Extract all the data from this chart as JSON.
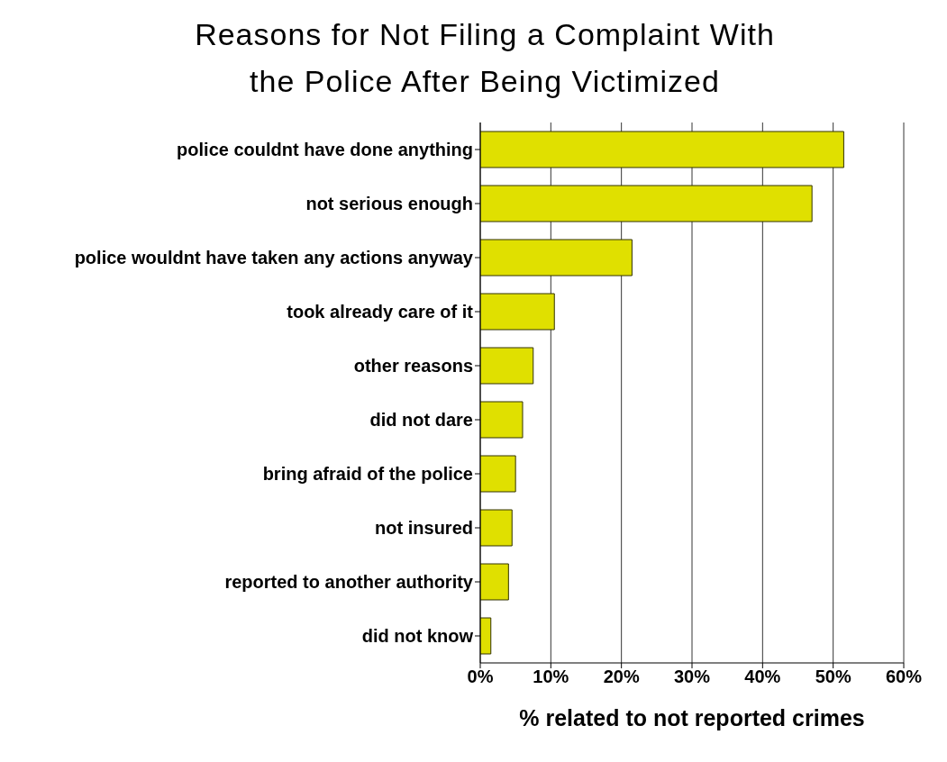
{
  "chart_data": {
    "type": "bar",
    "orientation": "horizontal",
    "title": "Reasons for Not Filing a Complaint With the Police After Being Victimized",
    "xlabel": "% related to not reported crimes",
    "categories": [
      "police couldnt have done anything",
      "not serious enough",
      "police wouldnt have taken any actions anyway",
      "took already care of it",
      "other reasons",
      "did not dare",
      "bring afraid of the police",
      "not insured",
      "reported to another authority",
      "did not know"
    ],
    "values": [
      51.5,
      47,
      21.5,
      10.5,
      7.5,
      6,
      5,
      4.5,
      4,
      1.5
    ],
    "color": "#e0e000",
    "xlim": [
      0,
      60
    ],
    "xticks": [
      {
        "value": 0,
        "label": "0%"
      },
      {
        "value": 10,
        "label": "10%"
      },
      {
        "value": 20,
        "label": "20%"
      },
      {
        "value": 30,
        "label": "30%"
      },
      {
        "value": 40,
        "label": "40%"
      },
      {
        "value": 50,
        "label": "50%"
      },
      {
        "value": 60,
        "label": "60%"
      }
    ],
    "grid": "x"
  }
}
